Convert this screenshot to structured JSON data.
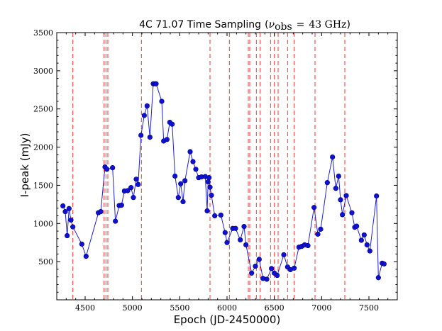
{
  "chart_data": {
    "type": "scatter",
    "title": "4C 71.07 Time Sampling",
    "title_math": {
      "nu": "ν",
      "sub": "obs",
      "eq": "=",
      "value": "43 GHz"
    },
    "xlabel": "Epoch (JD-2450000)",
    "ylabel": "I-peak (mJy)",
    "xlim": [
      4200,
      7800
    ],
    "ylim": [
      0,
      3500
    ],
    "x_ticks": [
      4500,
      5000,
      5500,
      6000,
      6500,
      7000,
      7500
    ],
    "y_ticks": [
      500,
      1000,
      1500,
      2000,
      2500,
      3000,
      3500
    ],
    "grid": false,
    "colors": {
      "series": "#0000cc",
      "line": "#1f1fd8",
      "markers": "#1010d0",
      "vlines": "#ff3333"
    },
    "vlines": [
      4370,
      4700,
      4720,
      4740,
      5095,
      5820,
      6025,
      6225,
      6240,
      6310,
      6350,
      6460,
      6500,
      6540,
      6640,
      6710,
      6930,
      7245
    ],
    "series": [
      {
        "name": "I-peak",
        "points": [
          [
            4265,
            1230
          ],
          [
            4290,
            1155
          ],
          [
            4310,
            840
          ],
          [
            4330,
            1195
          ],
          [
            4350,
            1045
          ],
          [
            4370,
            955
          ],
          [
            4465,
            730
          ],
          [
            4510,
            570
          ],
          [
            4640,
            1140
          ],
          [
            4665,
            1155
          ],
          [
            4710,
            1740
          ],
          [
            4730,
            1710
          ],
          [
            4790,
            1730
          ],
          [
            4820,
            1030
          ],
          [
            4860,
            1235
          ],
          [
            4885,
            1240
          ],
          [
            4915,
            1425
          ],
          [
            4950,
            1430
          ],
          [
            4985,
            1470
          ],
          [
            5010,
            1340
          ],
          [
            5040,
            1580
          ],
          [
            5060,
            1510
          ],
          [
            5090,
            2155
          ],
          [
            5125,
            2415
          ],
          [
            5155,
            2540
          ],
          [
            5185,
            2130
          ],
          [
            5220,
            2830
          ],
          [
            5240,
            2830
          ],
          [
            5250,
            2830
          ],
          [
            5310,
            2600
          ],
          [
            5330,
            2080
          ],
          [
            5365,
            2100
          ],
          [
            5395,
            2325
          ],
          [
            5420,
            2300
          ],
          [
            5450,
            1620
          ],
          [
            5485,
            1340
          ],
          [
            5510,
            1520
          ],
          [
            5535,
            1285
          ],
          [
            5555,
            1560
          ],
          [
            5610,
            1940
          ],
          [
            5640,
            1810
          ],
          [
            5670,
            1710
          ],
          [
            5700,
            1600
          ],
          [
            5730,
            1610
          ],
          [
            5770,
            1615
          ],
          [
            5790,
            1165
          ],
          [
            5800,
            1545
          ],
          [
            5810,
            1600
          ],
          [
            5820,
            1475
          ],
          [
            5835,
            1370
          ],
          [
            5870,
            1100
          ],
          [
            5935,
            1110
          ],
          [
            5980,
            880
          ],
          [
            6000,
            750
          ],
          [
            6060,
            935
          ],
          [
            6090,
            935
          ],
          [
            6140,
            785
          ],
          [
            6180,
            960
          ],
          [
            6200,
            720
          ],
          [
            6260,
            350
          ],
          [
            6300,
            440
          ],
          [
            6340,
            530
          ],
          [
            6380,
            280
          ],
          [
            6420,
            270
          ],
          [
            6470,
            410
          ],
          [
            6500,
            350
          ],
          [
            6530,
            320
          ],
          [
            6600,
            590
          ],
          [
            6640,
            430
          ],
          [
            6670,
            395
          ],
          [
            6710,
            415
          ],
          [
            6760,
            690
          ],
          [
            6790,
            700
          ],
          [
            6820,
            720
          ],
          [
            6855,
            710
          ],
          [
            6920,
            1210
          ],
          [
            6960,
            860
          ],
          [
            6990,
            925
          ],
          [
            7060,
            1535
          ],
          [
            7115,
            1870
          ],
          [
            7150,
            1460
          ],
          [
            7180,
            1620
          ],
          [
            7200,
            1310
          ],
          [
            7220,
            1115
          ],
          [
            7260,
            1365
          ],
          [
            7320,
            1140
          ],
          [
            7350,
            950
          ],
          [
            7370,
            965
          ],
          [
            7420,
            780
          ],
          [
            7450,
            850
          ],
          [
            7480,
            720
          ],
          [
            7510,
            640
          ],
          [
            7580,
            1360
          ],
          [
            7600,
            290
          ],
          [
            7640,
            480
          ],
          [
            7660,
            470
          ]
        ]
      }
    ]
  }
}
